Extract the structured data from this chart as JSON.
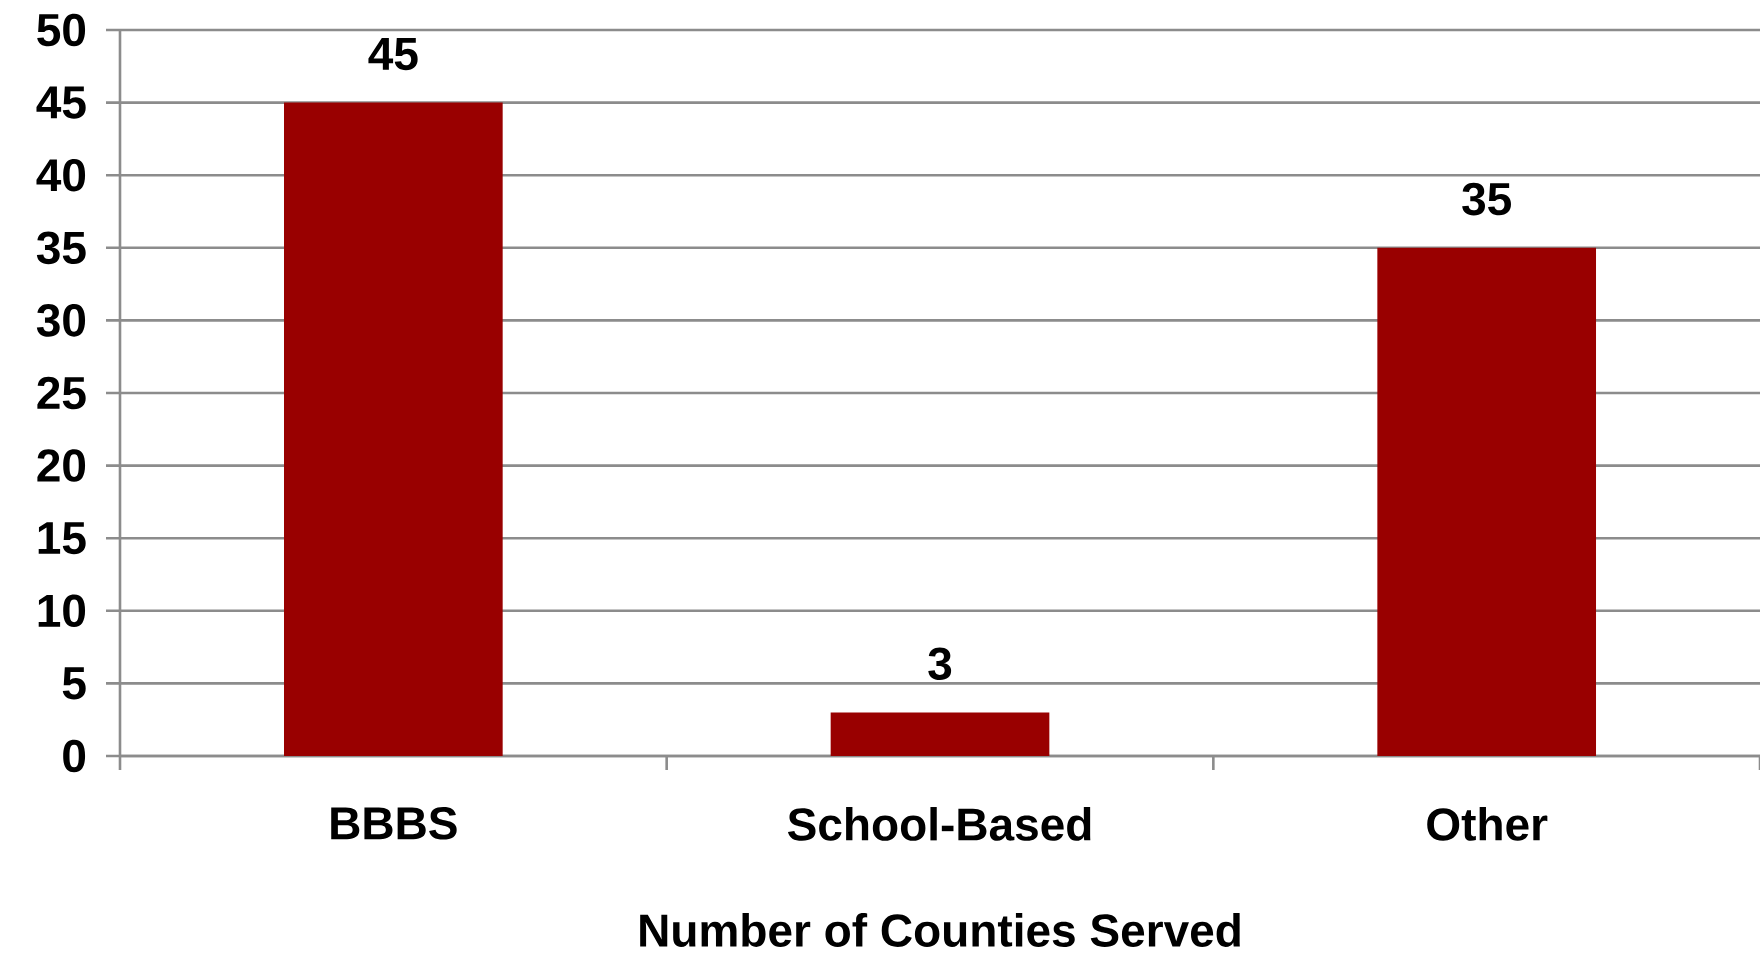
{
  "chart_data": {
    "type": "bar",
    "xlabel": "Number of Counties Served",
    "categories": [
      "BBBS",
      "School-Based",
      "Other"
    ],
    "values": [
      45,
      3,
      35
    ],
    "color": "#990000",
    "ylim": [
      0,
      50
    ],
    "yticks": [
      0,
      5,
      10,
      15,
      20,
      25,
      30,
      35,
      40,
      45,
      50
    ],
    "grid": "y",
    "data_labels": true
  }
}
